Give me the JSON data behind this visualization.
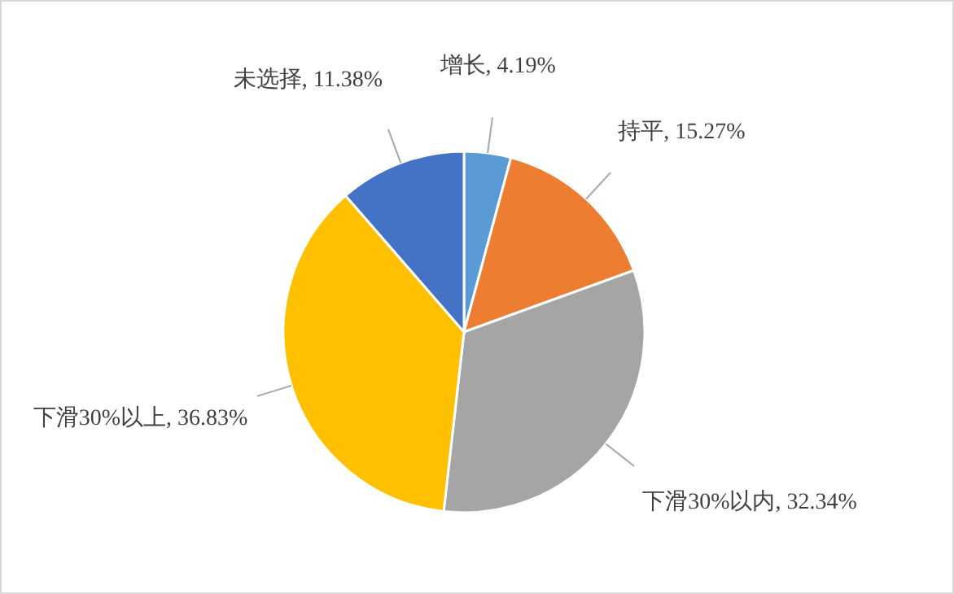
{
  "chart_data": {
    "type": "pie",
    "categories": [
      "增长",
      "持平",
      "下滑30%以内",
      "下滑30%以上",
      "未选择"
    ],
    "values": [
      4.19,
      15.27,
      32.34,
      36.83,
      11.38
    ],
    "value_labels": [
      "4.19%",
      "15.27%",
      "32.34%",
      "36.83%",
      "11.38%"
    ],
    "colors": [
      "#5b9bd5",
      "#ed7d31",
      "#a5a5a5",
      "#ffc000",
      "#4472c4"
    ],
    "legend": false
  }
}
